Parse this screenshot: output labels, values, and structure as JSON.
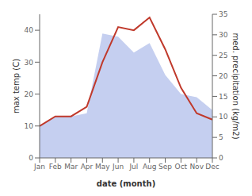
{
  "chart_data": {
    "type": "line",
    "categories": [
      "Jan",
      "Feb",
      "Mar",
      "Apr",
      "May",
      "Jun",
      "Jul",
      "Aug",
      "Sep",
      "Oct",
      "Nov",
      "Dec"
    ],
    "series": [
      {
        "type": "area",
        "color": "#c5cff0",
        "values": [
          10,
          13,
          13,
          14,
          39,
          38,
          33,
          36,
          26,
          20,
          19,
          15
        ]
      },
      {
        "type": "line",
        "color": "#c0392b",
        "values": [
          10,
          13,
          13,
          16,
          30,
          41,
          40,
          44,
          34,
          22,
          14,
          12
        ]
      }
    ],
    "x_label": "date (month)",
    "y_label": "max temp (C)",
    "y2_label": "med. precipitation (kg/m2)",
    "ylim": [
      0,
      45
    ],
    "yticks": [
      0,
      10,
      20,
      30,
      40
    ],
    "y2lim": [
      0,
      35
    ],
    "y2ticks": [
      0,
      5,
      10,
      15,
      20,
      25,
      30,
      35
    ],
    "grid": false
  }
}
